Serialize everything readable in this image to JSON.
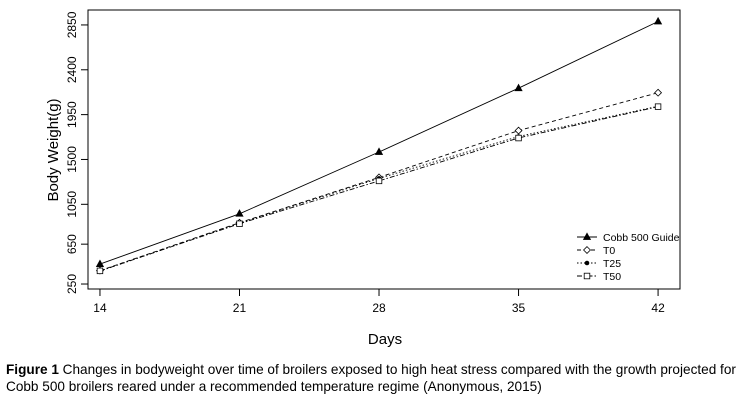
{
  "chart_data": {
    "type": "line",
    "title": "",
    "xlabel": "Days",
    "ylabel": "Body Weight(g)",
    "x": [
      14,
      21,
      28,
      35,
      42
    ],
    "xticks": [
      "14",
      "21",
      "28",
      "35",
      "42"
    ],
    "yticks": [
      "250",
      "650",
      "1050",
      "1500",
      "1950",
      "2400",
      "2850"
    ],
    "xlim": [
      13.4,
      43.1
    ],
    "ylim": [
      200,
      3000
    ],
    "grid": false,
    "legend_position": "bottom-right",
    "series": [
      {
        "name": "Cobb 500 Guide",
        "marker": "filled-triangle",
        "dash": "solid",
        "values": [
          450,
          955,
          1575,
          2215,
          2885
        ]
      },
      {
        "name": "T0",
        "marker": "open-diamond",
        "dash": "dashed",
        "values": [
          385,
          865,
          1320,
          1790,
          2170
        ]
      },
      {
        "name": "T25",
        "marker": "filled-circle",
        "dash": "dotted",
        "values": [
          380,
          860,
          1310,
          1730,
          2035
        ]
      },
      {
        "name": "T50",
        "marker": "open-square",
        "dash": "dashdot",
        "values": [
          382,
          855,
          1285,
          1715,
          2030
        ]
      }
    ]
  },
  "caption": {
    "label": "Figure 1",
    "text": " Changes in bodyweight over time of broilers exposed to high heat stress compared with the growth projected for Cobb 500 broilers reared under a recommended temperature regime (Anonymous, 2015)"
  }
}
